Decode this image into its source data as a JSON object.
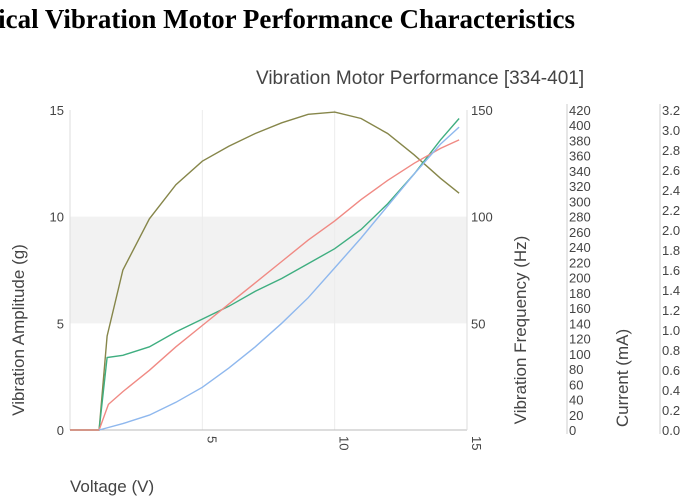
{
  "page_title": "ical Vibration Motor Performance Characteristics",
  "chart_data": {
    "type": "line",
    "title": "Vibration Motor Performance [334-401]",
    "xlabel": "Voltage (V)",
    "xlim": [
      0,
      15
    ],
    "xticks": [
      "5",
      "10",
      "15"
    ],
    "xtick_values": [
      5,
      10,
      15
    ],
    "grid": true,
    "shaded_band": [
      5,
      10
    ],
    "axes": [
      {
        "label": "Vibration Amplitude (g)",
        "position": "left",
        "range": [
          0,
          15
        ],
        "ticks": [
          "0",
          "5",
          "10",
          "15"
        ]
      },
      {
        "label": "Vibration Frequency (Hz)",
        "position": "right",
        "range": [
          0,
          150
        ],
        "ticks": [
          "50",
          "100",
          "150"
        ]
      },
      {
        "label": "",
        "position": "right-outer",
        "range": [
          0,
          420
        ],
        "ticks": [
          "0",
          "20",
          "40",
          "60",
          "80",
          "100",
          "120",
          "140",
          "160",
          "180",
          "200",
          "220",
          "240",
          "260",
          "280",
          "300",
          "320",
          "340",
          "360",
          "380",
          "400",
          "420"
        ]
      },
      {
        "label": "Current (mA)",
        "position": "right-outer-2",
        "range": [
          0,
          3.2
        ],
        "ticks": [
          "0.0",
          "0.2",
          "0.4",
          "0.6",
          "0.8",
          "1.0",
          "1.2",
          "1.4",
          "1.6",
          "1.8",
          "2.0",
          "2.2",
          "2.4",
          "2.6",
          "2.8",
          "3.0",
          "3.2"
        ]
      }
    ],
    "series": [
      {
        "color": "#86864a",
        "x": [
          0,
          1.1,
          1.4,
          2,
          3,
          4,
          5,
          6,
          7,
          8,
          9,
          10,
          11,
          12,
          13,
          14,
          14.7
        ],
        "y": [
          0,
          0,
          4.4,
          7.5,
          9.9,
          11.5,
          12.6,
          13.3,
          13.9,
          14.4,
          14.8,
          14.9,
          14.6,
          13.9,
          12.9,
          11.8,
          11.1
        ]
      },
      {
        "color": "#3fae80",
        "x": [
          0,
          1.1,
          1.4,
          2,
          3,
          4,
          5,
          6,
          7,
          8,
          9,
          10,
          11,
          12,
          13,
          14,
          14.7
        ],
        "y": [
          0,
          0,
          3.4,
          3.5,
          3.9,
          4.6,
          5.2,
          5.8,
          6.5,
          7.1,
          7.8,
          8.5,
          9.4,
          10.6,
          12.0,
          13.6,
          14.6
        ]
      },
      {
        "color": "#f08a84",
        "x": [
          0,
          1.1,
          1.45,
          2,
          3,
          4,
          5,
          6,
          7,
          8,
          9,
          10,
          11,
          12,
          13,
          14,
          14.7
        ],
        "y": [
          0,
          0,
          1.2,
          1.8,
          2.8,
          3.9,
          4.9,
          5.9,
          6.9,
          7.9,
          8.9,
          9.8,
          10.8,
          11.7,
          12.5,
          13.2,
          13.6
        ]
      },
      {
        "color": "#8fb8ee",
        "x": [
          1.1,
          2,
          3,
          4,
          5,
          6,
          7,
          8,
          9,
          10,
          11,
          12,
          13,
          14,
          14.7
        ],
        "y": [
          0,
          0.3,
          0.7,
          1.3,
          2.0,
          2.9,
          3.9,
          5.0,
          6.2,
          7.6,
          9.0,
          10.5,
          12.0,
          13.4,
          14.2
        ]
      }
    ]
  }
}
